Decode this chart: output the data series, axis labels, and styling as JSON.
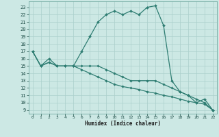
{
  "xlabel": "Humidex (Indice chaleur)",
  "line_color": "#2e7d72",
  "bg_color": "#cce8e4",
  "grid_color": "#aacfcb",
  "xlim": [
    -0.5,
    22.5
  ],
  "ylim": [
    8.5,
    23.8
  ],
  "xticks": [
    0,
    1,
    2,
    3,
    4,
    5,
    6,
    7,
    8,
    9,
    10,
    11,
    12,
    13,
    14,
    15,
    16,
    17,
    18,
    19,
    20,
    21,
    22
  ],
  "yticks": [
    9,
    10,
    11,
    12,
    13,
    14,
    15,
    16,
    17,
    18,
    19,
    20,
    21,
    22,
    23
  ],
  "series1_x": [
    0,
    1,
    2,
    3,
    4,
    5,
    6,
    7,
    8,
    9,
    10,
    11,
    12,
    13,
    14,
    15,
    16,
    17,
    18,
    19,
    20,
    21,
    22
  ],
  "series1_y": [
    17,
    15,
    16,
    15,
    15,
    15,
    17,
    19,
    21,
    22,
    22.5,
    22,
    22.5,
    22,
    23,
    23.2,
    20.5,
    13,
    11.5,
    11,
    10,
    10.5,
    9
  ],
  "series2_x": [
    0,
    1,
    2,
    3,
    4,
    5,
    6,
    7,
    8,
    9,
    10,
    11,
    12,
    13,
    14,
    15,
    16,
    17,
    18,
    19,
    20,
    21,
    22
  ],
  "series2_y": [
    17,
    15,
    15.5,
    15,
    15,
    15,
    15,
    15,
    15,
    14.5,
    14,
    13.5,
    13,
    13,
    13,
    13,
    12.5,
    12,
    11.5,
    11,
    10.5,
    10,
    9
  ],
  "series3_x": [
    0,
    1,
    2,
    3,
    4,
    5,
    6,
    7,
    8,
    9,
    10,
    11,
    12,
    13,
    14,
    15,
    16,
    17,
    18,
    19,
    20,
    21,
    22
  ],
  "series3_y": [
    17,
    15,
    15.5,
    15,
    15,
    15,
    14.5,
    14,
    13.5,
    13.0,
    12.5,
    12.2,
    12.0,
    11.8,
    11.5,
    11.3,
    11.0,
    10.8,
    10.5,
    10.2,
    10.0,
    9.8,
    9.0
  ]
}
